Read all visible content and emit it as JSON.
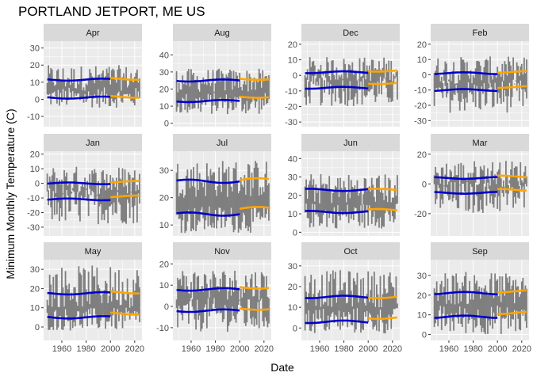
{
  "chart_data": {
    "type": "bar",
    "title": "PORTLAND JETPORT, ME US",
    "xlabel": "Date",
    "ylabel": "Minimum Monthly Temperature (C)",
    "x_ticks": [
      1960,
      1980,
      2000,
      2020
    ],
    "x_range": [
      1945,
      2026
    ],
    "baseline_break_year": 2000,
    "colors": {
      "bars": "#7f7f7f",
      "baseline": "#0000cc",
      "recent": "#ffa500"
    },
    "panels": [
      {
        "name": "Apr",
        "ylim": [
          -16,
          34
        ],
        "yticks": [
          -10,
          0,
          10,
          20,
          30
        ],
        "low": [
          -5,
          7
        ],
        "high": [
          5,
          20
        ],
        "base_low": 1,
        "base_high": 11.5,
        "recent_low": 1.5,
        "recent_high": 12
      },
      {
        "name": "Aug",
        "ylim": [
          -2,
          48
        ],
        "yticks": [
          0,
          10,
          20,
          30,
          40
        ],
        "low": [
          5,
          18
        ],
        "high": [
          18,
          32
        ],
        "base_low": 13,
        "base_high": 25,
        "recent_low": 15.5,
        "recent_high": 26
      },
      {
        "name": "Dec",
        "ylim": [
          -33,
          22
        ],
        "yticks": [
          -30,
          -20,
          -10,
          0,
          10,
          20
        ],
        "low": [
          -20,
          0
        ],
        "high": [
          -4,
          12
        ],
        "base_low": -8,
        "base_high": 2,
        "recent_low": -5,
        "recent_high": 3
      },
      {
        "name": "Feb",
        "ylim": [
          -34,
          22
        ],
        "yticks": [
          -30,
          -20,
          -10,
          0,
          10,
          20
        ],
        "low": [
          -25,
          -3
        ],
        "high": [
          -6,
          12
        ],
        "base_low": -10,
        "base_high": 1,
        "recent_low": -8,
        "recent_high": 2
      },
      {
        "name": "Jan",
        "ylim": [
          -36,
          22
        ],
        "yticks": [
          -30,
          -20,
          -10,
          0,
          10,
          20
        ],
        "low": [
          -28,
          -3
        ],
        "high": [
          -8,
          12
        ],
        "base_low": -11,
        "base_high": 0,
        "recent_low": -9,
        "recent_high": 1
      },
      {
        "name": "Jul",
        "ylim": [
          6,
          37
        ],
        "yticks": [
          10,
          20,
          30
        ],
        "low": [
          7,
          17
        ],
        "high": [
          20,
          34
        ],
        "base_low": 14,
        "base_high": 26,
        "recent_low": 16,
        "recent_high": 26.5
      },
      {
        "name": "Jun",
        "ylim": [
          -2,
          44
        ],
        "yticks": [
          0,
          10,
          20,
          30,
          40
        ],
        "low": [
          2,
          16
        ],
        "high": [
          15,
          32
        ],
        "base_low": 11,
        "base_high": 23,
        "recent_low": 12,
        "recent_high": 23
      },
      {
        "name": "Mar",
        "ylim": [
          -35,
          22
        ],
        "yticks": [
          -20,
          0,
          20
        ],
        "low": [
          -20,
          2
        ],
        "high": [
          -2,
          16
        ],
        "base_low": -6,
        "base_high": 4,
        "recent_low": -4,
        "recent_high": 5
      },
      {
        "name": "May",
        "ylim": [
          -7,
          35
        ],
        "yticks": [
          0,
          10,
          20,
          30
        ],
        "low": [
          -2,
          10
        ],
        "high": [
          10,
          32
        ],
        "base_low": 5,
        "base_high": 17.5,
        "recent_low": 7,
        "recent_high": 18
      },
      {
        "name": "Nov",
        "ylim": [
          -16,
          22
        ],
        "yticks": [
          -10,
          0,
          10,
          20
        ],
        "low": [
          -12,
          4
        ],
        "high": [
          3,
          18
        ],
        "base_low": -2,
        "base_high": 8,
        "recent_low": -1,
        "recent_high": 9
      },
      {
        "name": "Oct",
        "ylim": [
          -6,
          33
        ],
        "yticks": [
          0,
          10,
          20,
          30
        ],
        "low": [
          -3,
          10
        ],
        "high": [
          10,
          28
        ],
        "base_low": 3,
        "base_high": 15,
        "recent_low": 5,
        "recent_high": 15
      },
      {
        "name": "Sep",
        "ylim": [
          -3,
          38
        ],
        "yticks": [
          0,
          10,
          20,
          30
        ],
        "low": [
          0,
          15
        ],
        "high": [
          15,
          32
        ],
        "base_low": 9,
        "base_high": 21,
        "recent_low": 11,
        "recent_high": 22
      }
    ]
  }
}
